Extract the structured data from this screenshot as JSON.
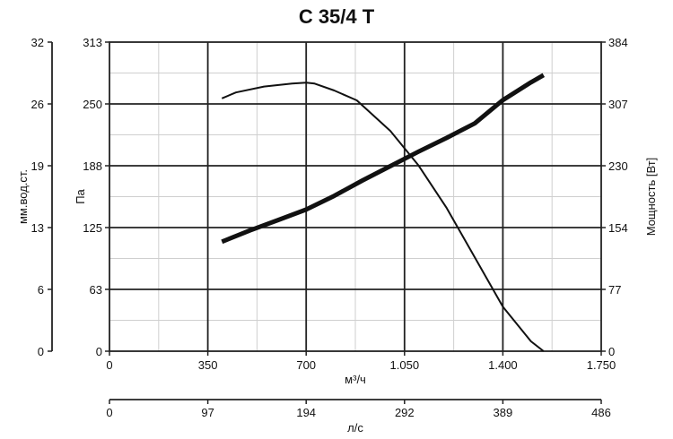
{
  "chart_data": {
    "type": "line",
    "title": "C 35/4 T",
    "x_axis": {
      "label": "м³/ч",
      "ticks": [
        "0",
        "350",
        "700",
        "1.050",
        "1.400",
        "1.750"
      ],
      "range": [
        0,
        1750
      ]
    },
    "x2_axis": {
      "label": "л/с",
      "ticks": [
        "0",
        "97",
        "194",
        "292",
        "389",
        "486"
      ],
      "range": [
        0,
        486
      ]
    },
    "y_left_outer": {
      "label": "мм.вод.ст.",
      "ticks": [
        "0",
        "6",
        "13",
        "19",
        "26",
        "32"
      ],
      "range": [
        0,
        32
      ]
    },
    "y_left": {
      "label": "Па",
      "ticks": [
        "0",
        "63",
        "125",
        "188",
        "250",
        "313"
      ],
      "range": [
        0,
        313
      ]
    },
    "y_right": {
      "label": "Мощность [Вт]",
      "ticks": [
        "0",
        "77",
        "154",
        "230",
        "307",
        "384"
      ],
      "range": [
        0,
        384
      ]
    },
    "grid": true,
    "series": [
      {
        "axis": "left",
        "color": "#111111",
        "x": [
          400,
          450,
          550,
          650,
          700,
          730,
          800,
          880,
          1000,
          1100,
          1200,
          1300,
          1400,
          1500,
          1545
        ],
        "y": [
          256,
          262,
          268,
          271,
          272,
          271,
          264,
          254,
          223,
          188,
          145,
          95,
          45,
          10,
          0
        ]
      },
      {
        "axis": "right",
        "color": "#111111",
        "x": [
          400,
          500,
          600,
          700,
          800,
          900,
          1000,
          1100,
          1200,
          1300,
          1400,
          1500,
          1545
        ],
        "y": [
          136,
          150,
          163,
          176,
          193,
          212,
          230,
          248,
          265,
          283,
          312,
          334,
          343
        ]
      }
    ]
  }
}
